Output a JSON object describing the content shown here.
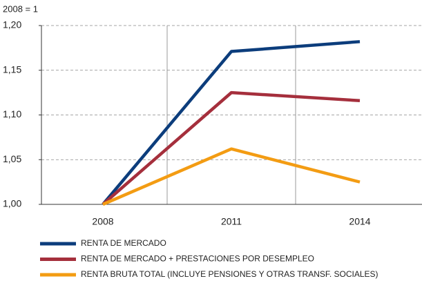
{
  "chart_data": {
    "type": "line",
    "subtitle": "2008 = 1",
    "categories": [
      "2008",
      "2011",
      "2014"
    ],
    "series": [
      {
        "name": "RENTA DE MERCADO",
        "color": "#0c3d7c",
        "values": [
          1.0,
          1.171,
          1.182
        ]
      },
      {
        "name": "RENTA DE MERCADO + PRESTACIONES POR DESEMPLEO",
        "color": "#a52f3c",
        "values": [
          1.0,
          1.125,
          1.116
        ]
      },
      {
        "name": "RENTA BRUTA TOTAL (INCLUYE PENSIONES Y OTRAS TRANSF. SOCIALES)",
        "color": "#f39c13",
        "values": [
          1.0,
          1.062,
          1.025
        ]
      }
    ],
    "ylim": [
      1.0,
      1.2
    ],
    "yticks": [
      {
        "value": 1.0,
        "label": "1,00"
      },
      {
        "value": 1.05,
        "label": "1,05"
      },
      {
        "value": 1.1,
        "label": "1,10"
      },
      {
        "value": 1.15,
        "label": "1,15"
      },
      {
        "value": 1.2,
        "label": "1,20"
      }
    ],
    "grid": true
  }
}
